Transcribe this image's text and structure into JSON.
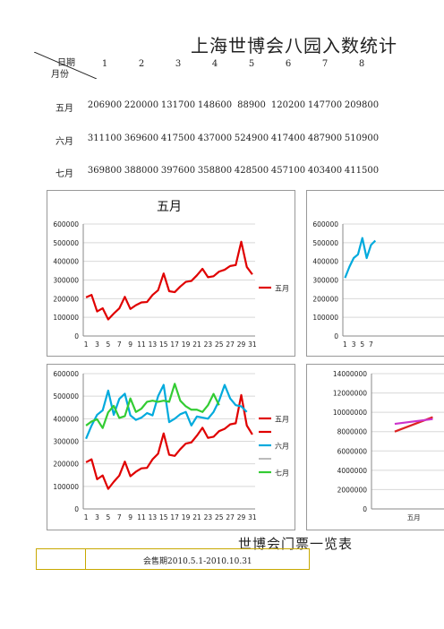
{
  "page": {
    "title": "上海世博会八园入数统计",
    "header_date": "日期",
    "header_month": "月份",
    "days": [
      "1",
      "2",
      "3",
      "4",
      "5",
      "6",
      "7",
      "8"
    ],
    "bottom_title": "世博会门票一览表",
    "bottom_note": "会售期2010.5.1-2010.10.31"
  },
  "table": {
    "rows": [
      {
        "label": "五月",
        "values": [
          "206900",
          "220000",
          "131700",
          "148600",
          "88900",
          "120200",
          "147700",
          "209800"
        ]
      },
      {
        "label": "六月",
        "values": [
          "311100",
          "369600",
          "417500",
          "437000",
          "524900",
          "417400",
          "487900",
          "510900"
        ]
      },
      {
        "label": "七月",
        "values": [
          "369800",
          "388000",
          "397600",
          "358800",
          "428500",
          "457100",
          "403400",
          "411500"
        ]
      }
    ]
  },
  "colors": {
    "may": "#e00000",
    "june": "#00aadd",
    "july": "#33cc33",
    "note_border": "#c8a800"
  },
  "chart_data": [
    {
      "type": "line",
      "title": "五月",
      "x": [
        1,
        2,
        3,
        4,
        5,
        6,
        7,
        8,
        9,
        10,
        11,
        12,
        13,
        14,
        15,
        16,
        17,
        18,
        19,
        20,
        21,
        22,
        23,
        24,
        25,
        26,
        27,
        28,
        29,
        30,
        31
      ],
      "xticks": [
        "1",
        "3",
        "5",
        "7",
        "9",
        "11",
        "13",
        "15",
        "17",
        "19",
        "21",
        "23",
        "25",
        "27",
        "29",
        "31"
      ],
      "yticks": [
        "0",
        "100000",
        "200000",
        "300000",
        "400000",
        "500000",
        "600000"
      ],
      "ylim": [
        0,
        600000
      ],
      "legend": "right",
      "series": [
        {
          "name": "五月",
          "values": [
            206900,
            220000,
            131700,
            148600,
            88900,
            120200,
            147700,
            209800,
            145000,
            165000,
            180000,
            182000,
            220000,
            245000,
            335000,
            240000,
            235000,
            265000,
            290000,
            295000,
            325000,
            360000,
            315000,
            320000,
            345000,
            355000,
            375000,
            380000,
            505000,
            370000,
            330000
          ]
        }
      ]
    },
    {
      "type": "line",
      "title": "",
      "x": [
        1,
        2,
        3,
        4,
        5,
        6,
        7,
        8
      ],
      "xticks": [
        "1",
        "3",
        "5",
        "7"
      ],
      "yticks": [
        "0",
        "100000",
        "200000",
        "300000",
        "400000",
        "500000",
        "600000"
      ],
      "ylim": [
        0,
        600000
      ],
      "series": [
        {
          "name": "六月",
          "values": [
            311100,
            369600,
            417500,
            437000,
            524900,
            417400,
            487900,
            510900
          ]
        }
      ]
    },
    {
      "type": "line",
      "title": "",
      "x": [
        1,
        2,
        3,
        4,
        5,
        6,
        7,
        8,
        9,
        10,
        11,
        12,
        13,
        14,
        15,
        16,
        17,
        18,
        19,
        20,
        21,
        22,
        23,
        24,
        25,
        26,
        27,
        28,
        29,
        30,
        31
      ],
      "xticks": [
        "1",
        "3",
        "5",
        "7",
        "9",
        "11",
        "13",
        "15",
        "17",
        "19",
        "21",
        "23",
        "25",
        "27",
        "29",
        "31"
      ],
      "yticks": [
        "0",
        "100000",
        "200000",
        "300000",
        "400000",
        "500000",
        "600000"
      ],
      "ylim": [
        0,
        600000
      ],
      "legend": "right",
      "series": [
        {
          "name": "五月",
          "values": [
            206900,
            220000,
            131700,
            148600,
            88900,
            120200,
            147700,
            209800,
            145000,
            165000,
            180000,
            182000,
            220000,
            245000,
            335000,
            240000,
            235000,
            265000,
            290000,
            295000,
            325000,
            360000,
            315000,
            320000,
            345000,
            355000,
            375000,
            380000,
            505000,
            370000,
            330000
          ]
        },
        {
          "name": "六月",
          "values": [
            311100,
            369600,
            417500,
            437000,
            524900,
            417400,
            487900,
            510900,
            415000,
            395000,
            405000,
            425000,
            415000,
            500000,
            550000,
            385000,
            400000,
            420000,
            430000,
            370000,
            410000,
            405000,
            400000,
            430000,
            480000,
            550000,
            490000,
            460000,
            455000,
            430000,
            null
          ]
        },
        {
          "name": "七月",
          "values": [
            369800,
            388000,
            397600,
            358800,
            428500,
            457100,
            403400,
            411500,
            490000,
            430000,
            445000,
            475000,
            480000,
            475000,
            480000,
            475000,
            555000,
            480000,
            455000,
            440000,
            440000,
            430000,
            460000,
            510000,
            460000,
            null,
            null,
            null,
            null,
            null,
            null
          ]
        }
      ]
    },
    {
      "type": "line",
      "title": "",
      "xticks": [
        "五月"
      ],
      "yticks": [
        "0",
        "2000000",
        "4000000",
        "6000000",
        "8000000",
        "10000000",
        "12000000",
        "14000000"
      ],
      "ylim": [
        0,
        14000000
      ],
      "series": [
        {
          "name": "",
          "values": [
            8000000,
            9500000
          ]
        },
        {
          "name": "",
          "values": [
            8800000,
            9300000
          ]
        }
      ]
    }
  ]
}
